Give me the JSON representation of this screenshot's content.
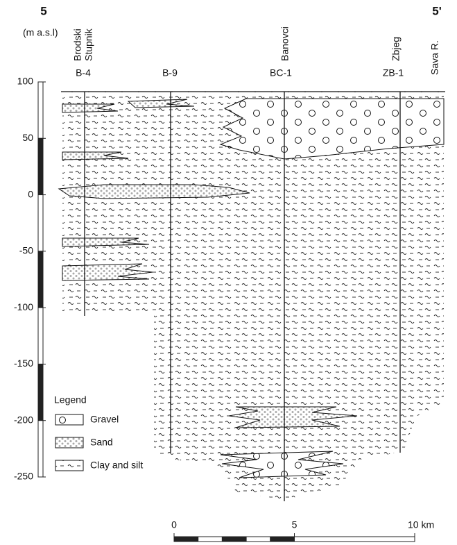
{
  "header": {
    "left_label": "5",
    "right_label": "5'"
  },
  "axis": {
    "label": "(m a.s.l)",
    "ticks": [
      100,
      50,
      0,
      -50,
      -100,
      -150,
      -200,
      -250
    ]
  },
  "localities": [
    "Brodski",
    "Stupnik",
    "Banovci",
    "Zbjeg",
    "Sava R."
  ],
  "boreholes": [
    "B-4",
    "B-9",
    "BC-1",
    "ZB-1"
  ],
  "legend": {
    "title": "Legend",
    "items": [
      "Gravel",
      "Sand",
      "Clay and silt"
    ]
  },
  "scale_bar": {
    "ticks": [
      0,
      5,
      {
        "value": 10,
        "label": "10 km"
      }
    ]
  }
}
